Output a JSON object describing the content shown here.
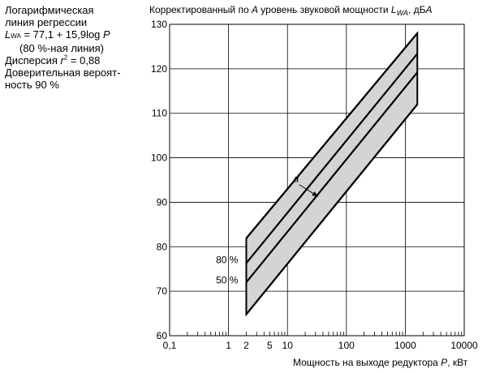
{
  "note": {
    "line1": "Логарифмическая",
    "line2": "линия регрессии",
    "formula_L": "L",
    "formula_sub": "WA",
    "formula_rest": " = 77,1 + 15,9log ",
    "formula_P": "P",
    "line4": "(80 %-ная линия)",
    "disp_label": "Дисперсия  ",
    "disp_r": "r",
    "disp_exp": "2",
    "disp_val": " = 0,88",
    "line6": "Доверительная вероят-",
    "line7": "ность 90 %"
  },
  "chart_data": {
    "type": "line",
    "title": "Корректированный по A уровень звуковой мощности LWA, дБA",
    "xlabel": "Мощность на выходе редуктора P, кВт",
    "ylabel": "Корректированный по A уровень звуковой мощности LWA, дБA",
    "x_scale": "log",
    "xlim": [
      0.1,
      10000
    ],
    "ylim": [
      60,
      130
    ],
    "x_ticks": [
      0.1,
      1,
      2,
      5,
      10,
      100,
      1000,
      10000
    ],
    "x_tick_labels": [
      "0,1",
      "1",
      "2",
      "5",
      "10",
      "100",
      "1000",
      "10000"
    ],
    "y_ticks": [
      60,
      70,
      80,
      90,
      100,
      110,
      120,
      130
    ],
    "y_tick_labels": [
      "60",
      "70",
      "80",
      "90",
      "100",
      "110",
      "120",
      "130"
    ],
    "grid": true,
    "series": [
      {
        "name": "80 %",
        "x": [
          2,
          1600
        ],
        "y": [
          81.9,
          128.0
        ]
      },
      {
        "name": "",
        "x": [
          2,
          1600
        ],
        "y": [
          76.3,
          123.4
        ]
      },
      {
        "name": "50 %",
        "x": [
          2,
          1600
        ],
        "y": [
          72.0,
          119.2
        ]
      },
      {
        "name": "",
        "x": [
          2,
          1600
        ],
        "y": [
          64.8,
          112.0
        ]
      }
    ],
    "band": {
      "upper": [
        [
          2,
          81.9
        ],
        [
          1600,
          128.0
        ]
      ],
      "lower": [
        [
          2,
          64.8
        ],
        [
          1600,
          112.0
        ]
      ],
      "color": "#d4d4d4"
    },
    "annotations": [
      {
        "text": "a",
        "x": 14,
        "y": 94.5,
        "arrow_to": [
          33,
          91.3
        ]
      },
      {
        "text": "80 %",
        "x": 2,
        "y": 77
      },
      {
        "text": "50 %",
        "x": 2,
        "y": 72.5
      }
    ]
  },
  "labels": {
    "title_main": "Корректированный по ",
    "title_A": "A",
    "title_mid": " уровень звуковой мощности ",
    "title_L": "L",
    "title_sub": "WA",
    "title_end": ", дБ",
    "title_A2": "A",
    "x_main": "Мощность на выходе редуктора ",
    "x_P": "P",
    "x_end": ", кВт"
  }
}
